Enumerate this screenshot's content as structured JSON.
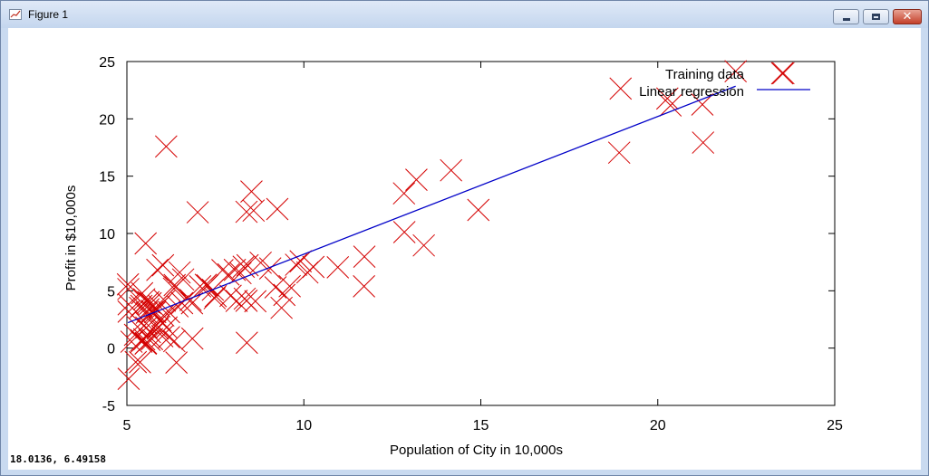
{
  "window": {
    "title": "Figure 1",
    "icon": "figure-plot-icon",
    "controls": {
      "minimize": "minimize-icon",
      "maximize": "maximize-icon",
      "close": "close-icon"
    }
  },
  "status": {
    "coordinates": "18.0136,  6.49158"
  },
  "colors": {
    "training": "#d40000",
    "regression": "#0000c8",
    "axis": "#000000"
  },
  "chart_data": {
    "type": "scatter",
    "title": "",
    "xlabel": "Population of City in 10,000s",
    "ylabel": "Profit in $10,000s",
    "xlim": [
      5,
      25
    ],
    "ylim": [
      -5,
      25
    ],
    "xticks": [
      5,
      10,
      15,
      20,
      25
    ],
    "yticks": [
      -5,
      0,
      5,
      10,
      15,
      20,
      25
    ],
    "grid": false,
    "legend_position": "top-right",
    "series": [
      {
        "name": "Training data",
        "kind": "scatter",
        "marker": "x",
        "color": "#d40000",
        "points": [
          [
            6.11,
            17.59
          ],
          [
            5.53,
            9.13
          ],
          [
            8.52,
            13.66
          ],
          [
            7.0,
            11.85
          ],
          [
            5.86,
            6.82
          ],
          [
            8.38,
            11.89
          ],
          [
            7.48,
            4.35
          ],
          [
            8.58,
            12.0
          ],
          [
            6.49,
            6.6
          ],
          [
            5.05,
            3.82
          ],
          [
            5.71,
            3.25
          ],
          [
            14.16,
            15.51
          ],
          [
            5.73,
            3.16
          ],
          [
            8.41,
            7.23
          ],
          [
            5.64,
            0.72
          ],
          [
            5.37,
            3.51
          ],
          [
            6.37,
            5.3
          ],
          [
            5.13,
            0.56
          ],
          [
            6.43,
            3.65
          ],
          [
            7.07,
            5.39
          ],
          [
            6.19,
            3.14
          ],
          [
            20.27,
            21.77
          ],
          [
            5.49,
            4.26
          ],
          [
            6.33,
            5.19
          ],
          [
            5.56,
            3.08
          ],
          [
            18.95,
            22.64
          ],
          [
            12.83,
            13.5
          ],
          [
            10.96,
            7.05
          ],
          [
            13.18,
            14.69
          ],
          [
            22.2,
            24.15
          ],
          [
            5.25,
            -1.22
          ],
          [
            6.59,
            5.99
          ],
          [
            9.25,
            12.13
          ],
          [
            5.89,
            1.85
          ],
          [
            8.21,
            6.54
          ],
          [
            7.93,
            4.56
          ],
          [
            8.1,
            4.12
          ],
          [
            5.61,
            3.39
          ],
          [
            12.84,
            10.12
          ],
          [
            6.35,
            5.5
          ],
          [
            5.41,
            0.56
          ],
          [
            6.84,
            3.91
          ],
          [
            5.67,
            3.91
          ],
          [
            9.78,
            7.27
          ],
          [
            6.19,
            0.95
          ],
          [
            6.0,
            1.04
          ],
          [
            5.92,
            3.65
          ],
          [
            13.39,
            8.96
          ],
          [
            6.85,
            0.83
          ],
          [
            6.34,
            0.61
          ],
          [
            6.03,
            2.85
          ],
          [
            5.95,
            2.41
          ],
          [
            5.55,
            2.16
          ],
          [
            8.05,
            6.82
          ],
          [
            5.05,
            -2.68
          ],
          [
            5.23,
            1.16
          ],
          [
            5.54,
            0.44
          ],
          [
            8.63,
            4.09
          ],
          [
            5.71,
            0.78
          ],
          [
            5.41,
            0.69
          ],
          [
            5.37,
            -1.23
          ],
          [
            6.12,
            1.8
          ],
          [
            11.71,
            7.98
          ],
          [
            9.91,
            7.57
          ],
          [
            5.61,
            4.01
          ],
          [
            7.28,
            5.47
          ],
          [
            6.07,
            4.14
          ],
          [
            8.39,
            0.47
          ],
          [
            5.05,
            3.18
          ],
          [
            5.03,
            5.56
          ],
          [
            21.28,
            17.93
          ],
          [
            5.55,
            1.79
          ],
          [
            7.23,
            5.52
          ],
          [
            5.49,
            0.76
          ],
          [
            10.27,
            7.08
          ],
          [
            21.26,
            21.25
          ],
          [
            11.7,
            5.39
          ],
          [
            20.36,
            21.17
          ],
          [
            5.41,
            3.69
          ],
          [
            6.02,
            7.23
          ],
          [
            5.8,
            3.14
          ],
          [
            8.78,
            7.45
          ],
          [
            5.43,
            4.79
          ],
          [
            23.55,
            23.98
          ],
          [
            5.04,
            5.15
          ],
          [
            18.91,
            17.05
          ],
          [
            7.87,
            6.43
          ],
          [
            9.37,
            3.51
          ],
          [
            8.33,
            4.31
          ],
          [
            7.43,
            5.09
          ],
          [
            14.93,
            12.05
          ],
          [
            9.45,
            4.64
          ],
          [
            6.4,
            -1.26
          ],
          [
            7.51,
            4.53
          ],
          [
            5.53,
            0.39
          ],
          [
            5.87,
            1.7
          ],
          [
            6.56,
            3.92
          ],
          [
            8.38,
            4.13
          ],
          [
            5.3,
            1.86
          ],
          [
            9.2,
            5.3
          ],
          [
            7.7,
            6.8
          ],
          [
            5.65,
            1.4
          ],
          [
            6.8,
            4.2
          ],
          [
            9.05,
            6.95
          ],
          [
            8.3,
            7.1
          ],
          [
            10.1,
            6.6
          ],
          [
            9.6,
            5.4
          ]
        ]
      },
      {
        "name": "Linear regression",
        "kind": "line",
        "color": "#0000c8",
        "x": [
          5.03,
          22.2
        ],
        "y": [
          2.22,
          22.85
        ]
      }
    ]
  }
}
